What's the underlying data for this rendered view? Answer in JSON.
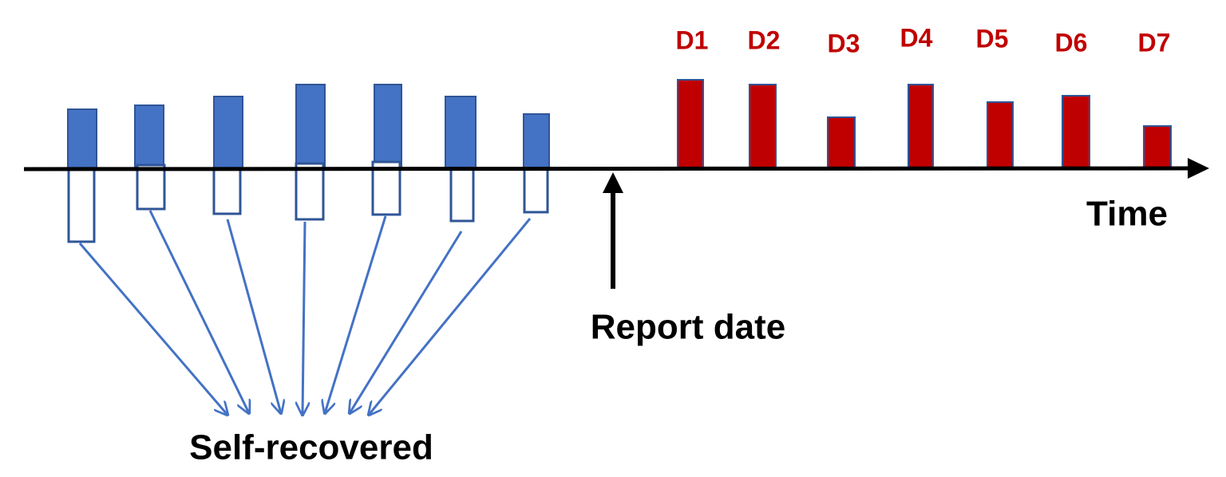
{
  "days": [
    "D1",
    "D2",
    "D3",
    "D4",
    "D5",
    "D6",
    "D7"
  ],
  "time_label": "Time",
  "report_date_label": "Report date",
  "self_recovered_label": "Self-recovered"
}
